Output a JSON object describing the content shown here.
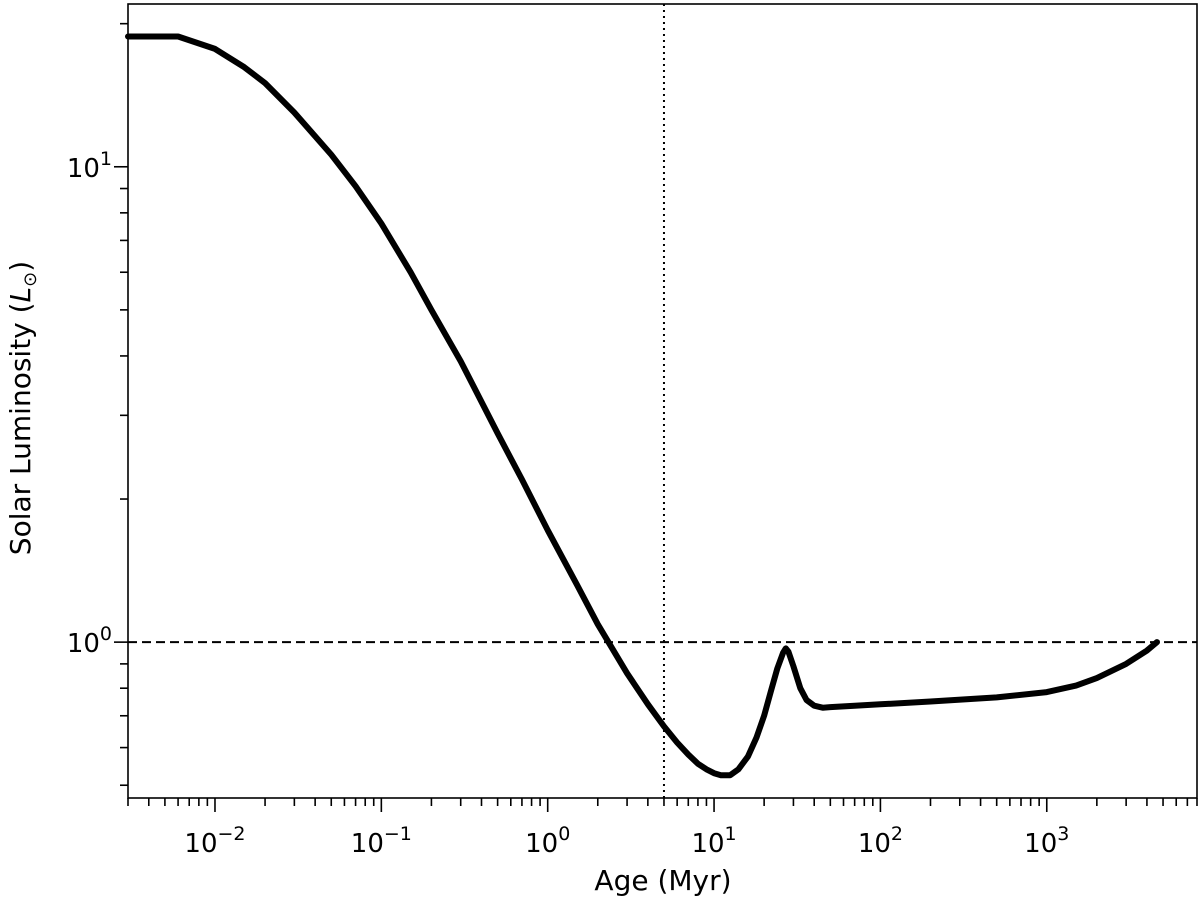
{
  "chart_data": {
    "type": "line",
    "title": "",
    "xlabel": "Age (Myr)",
    "ylabel_main": "Solar Luminosity (",
    "ylabel_symbol": "L",
    "ylabel_sub": "⊙",
    "ylabel_end": ")",
    "xscale": "log",
    "yscale": "log",
    "xlim": [
      0.003,
      8000
    ],
    "ylim": [
      0.47,
      22
    ],
    "x_major_ticks": [
      {
        "value": 0.01,
        "base": "10",
        "exp": "−2"
      },
      {
        "value": 0.1,
        "base": "10",
        "exp": "−1"
      },
      {
        "value": 1,
        "base": "10",
        "exp": "0"
      },
      {
        "value": 10,
        "base": "10",
        "exp": "1"
      },
      {
        "value": 100,
        "base": "10",
        "exp": "2"
      },
      {
        "value": 1000,
        "base": "10",
        "exp": "3"
      }
    ],
    "y_major_ticks": [
      {
        "value": 1,
        "base": "10",
        "exp": "0"
      },
      {
        "value": 10,
        "base": "10",
        "exp": "1"
      }
    ],
    "reference_lines": [
      {
        "orientation": "horizontal",
        "value": 1.0,
        "style": "dashed"
      },
      {
        "orientation": "vertical",
        "value": 5.0,
        "style": "dotted"
      }
    ],
    "grid": false,
    "series": [
      {
        "color": "#000000",
        "x": [
          0.003,
          0.006,
          0.01,
          0.015,
          0.02,
          0.03,
          0.05,
          0.07,
          0.1,
          0.15,
          0.2,
          0.3,
          0.5,
          0.7,
          1.0,
          1.5,
          2.0,
          3.0,
          4.0,
          5.0,
          6.0,
          7.0,
          8.0,
          9.0,
          10.0,
          11.0,
          12.5,
          14.0,
          16.0,
          18.0,
          20.0,
          22.0,
          24.0,
          26.0,
          27.0,
          28.0,
          30.0,
          33.0,
          36.0,
          40.0,
          45.0,
          50.0,
          70.0,
          100.0,
          200.0,
          500.0,
          1000.0,
          1500.0,
          2000.0,
          3000.0,
          4000.0,
          4600.0
        ],
        "y": [
          18.8,
          18.8,
          17.7,
          16.2,
          15.0,
          13.0,
          10.6,
          9.1,
          7.6,
          6.0,
          5.0,
          3.9,
          2.75,
          2.2,
          1.72,
          1.32,
          1.09,
          0.86,
          0.74,
          0.665,
          0.615,
          0.58,
          0.555,
          0.54,
          0.53,
          0.525,
          0.525,
          0.54,
          0.575,
          0.63,
          0.7,
          0.79,
          0.88,
          0.95,
          0.97,
          0.955,
          0.89,
          0.8,
          0.755,
          0.735,
          0.728,
          0.73,
          0.735,
          0.74,
          0.75,
          0.765,
          0.785,
          0.81,
          0.84,
          0.9,
          0.96,
          1.0
        ]
      }
    ]
  }
}
